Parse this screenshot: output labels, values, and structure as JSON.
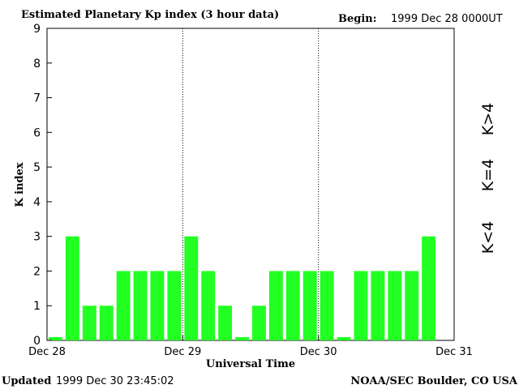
{
  "header": {
    "title": "Estimated Planetary Kp index (3 hour data)",
    "begin_label": "Begin:",
    "begin_value": "1999 Dec 28 0000UT"
  },
  "footer": {
    "updated_label": "Updated",
    "updated_value": "1999 Dec 30 23:45:02",
    "source": "NOAA/SEC Boulder, CO USA"
  },
  "legend": {
    "low": "K<4",
    "mid": "K=4",
    "high": "K>4",
    "colors": {
      "low": "#22ff22",
      "mid": "#ffd21a",
      "high": "#ff2a00"
    }
  },
  "chart_data": {
    "type": "bar",
    "title": "Estimated Planetary Kp index (3 hour data)",
    "xlabel": "Universal Time",
    "ylabel": "K index",
    "ylim": [
      0,
      9
    ],
    "yticks": [
      "0",
      "1",
      "2",
      "3",
      "4",
      "5",
      "6",
      "7",
      "8",
      "9"
    ],
    "xticks": [
      "Dec 28",
      "Dec 29",
      "Dec 30",
      "Dec 31"
    ],
    "interval_hours": 3,
    "values": [
      0,
      3,
      1,
      1,
      2,
      2,
      2,
      2,
      3,
      2,
      1,
      0,
      1,
      2,
      2,
      2,
      2,
      0,
      2,
      2,
      2,
      2,
      3
    ],
    "grid": "dotted vertical lines at day boundaries",
    "bar_color": "#22ff22"
  }
}
